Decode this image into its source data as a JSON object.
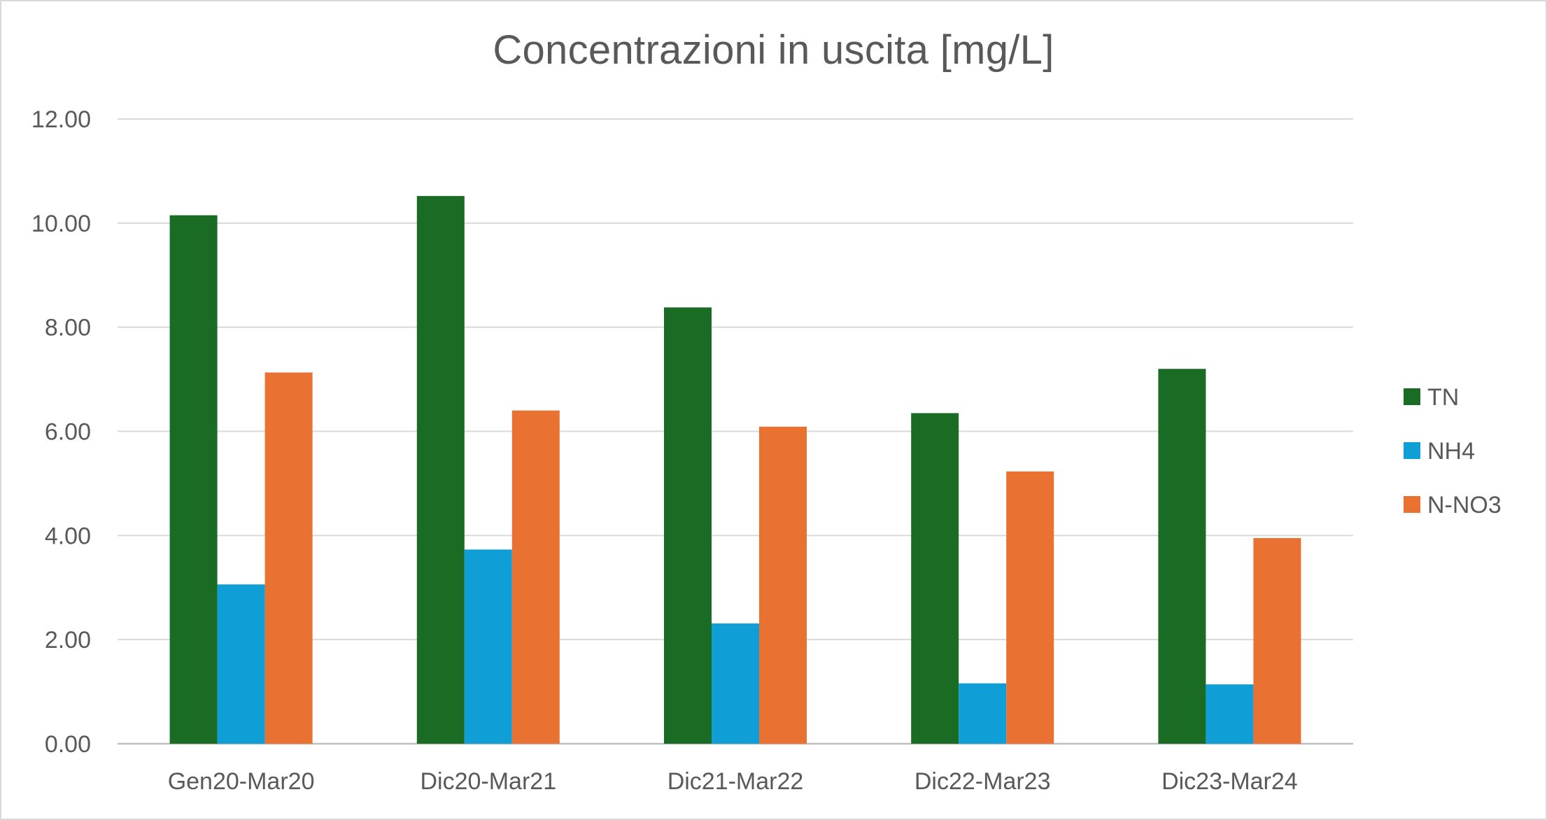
{
  "chart_data": {
    "type": "bar",
    "title": "Concentrazioni in uscita [mg/L]",
    "xlabel": "",
    "ylabel": "",
    "categories": [
      "Gen20-Mar20",
      "Dic20-Mar21",
      "Dic21-Mar22",
      "Dic22-Mar23",
      "Dic23-Mar24"
    ],
    "series": [
      {
        "name": "TN",
        "color": "#1a6b24",
        "values": [
          10.15,
          10.52,
          8.38,
          6.35,
          7.2
        ]
      },
      {
        "name": "NH4",
        "color": "#0f9ed5",
        "values": [
          3.06,
          3.73,
          2.31,
          1.16,
          1.14
        ]
      },
      {
        "name": "N-NO3",
        "color": "#e97132",
        "values": [
          7.13,
          6.4,
          6.09,
          5.23,
          3.95
        ]
      }
    ],
    "ylim": [
      0,
      12
    ],
    "yticks": [
      "0.00",
      "2.00",
      "4.00",
      "6.00",
      "8.00",
      "10.00",
      "12.00"
    ],
    "grid": true,
    "legend_position": "right"
  }
}
